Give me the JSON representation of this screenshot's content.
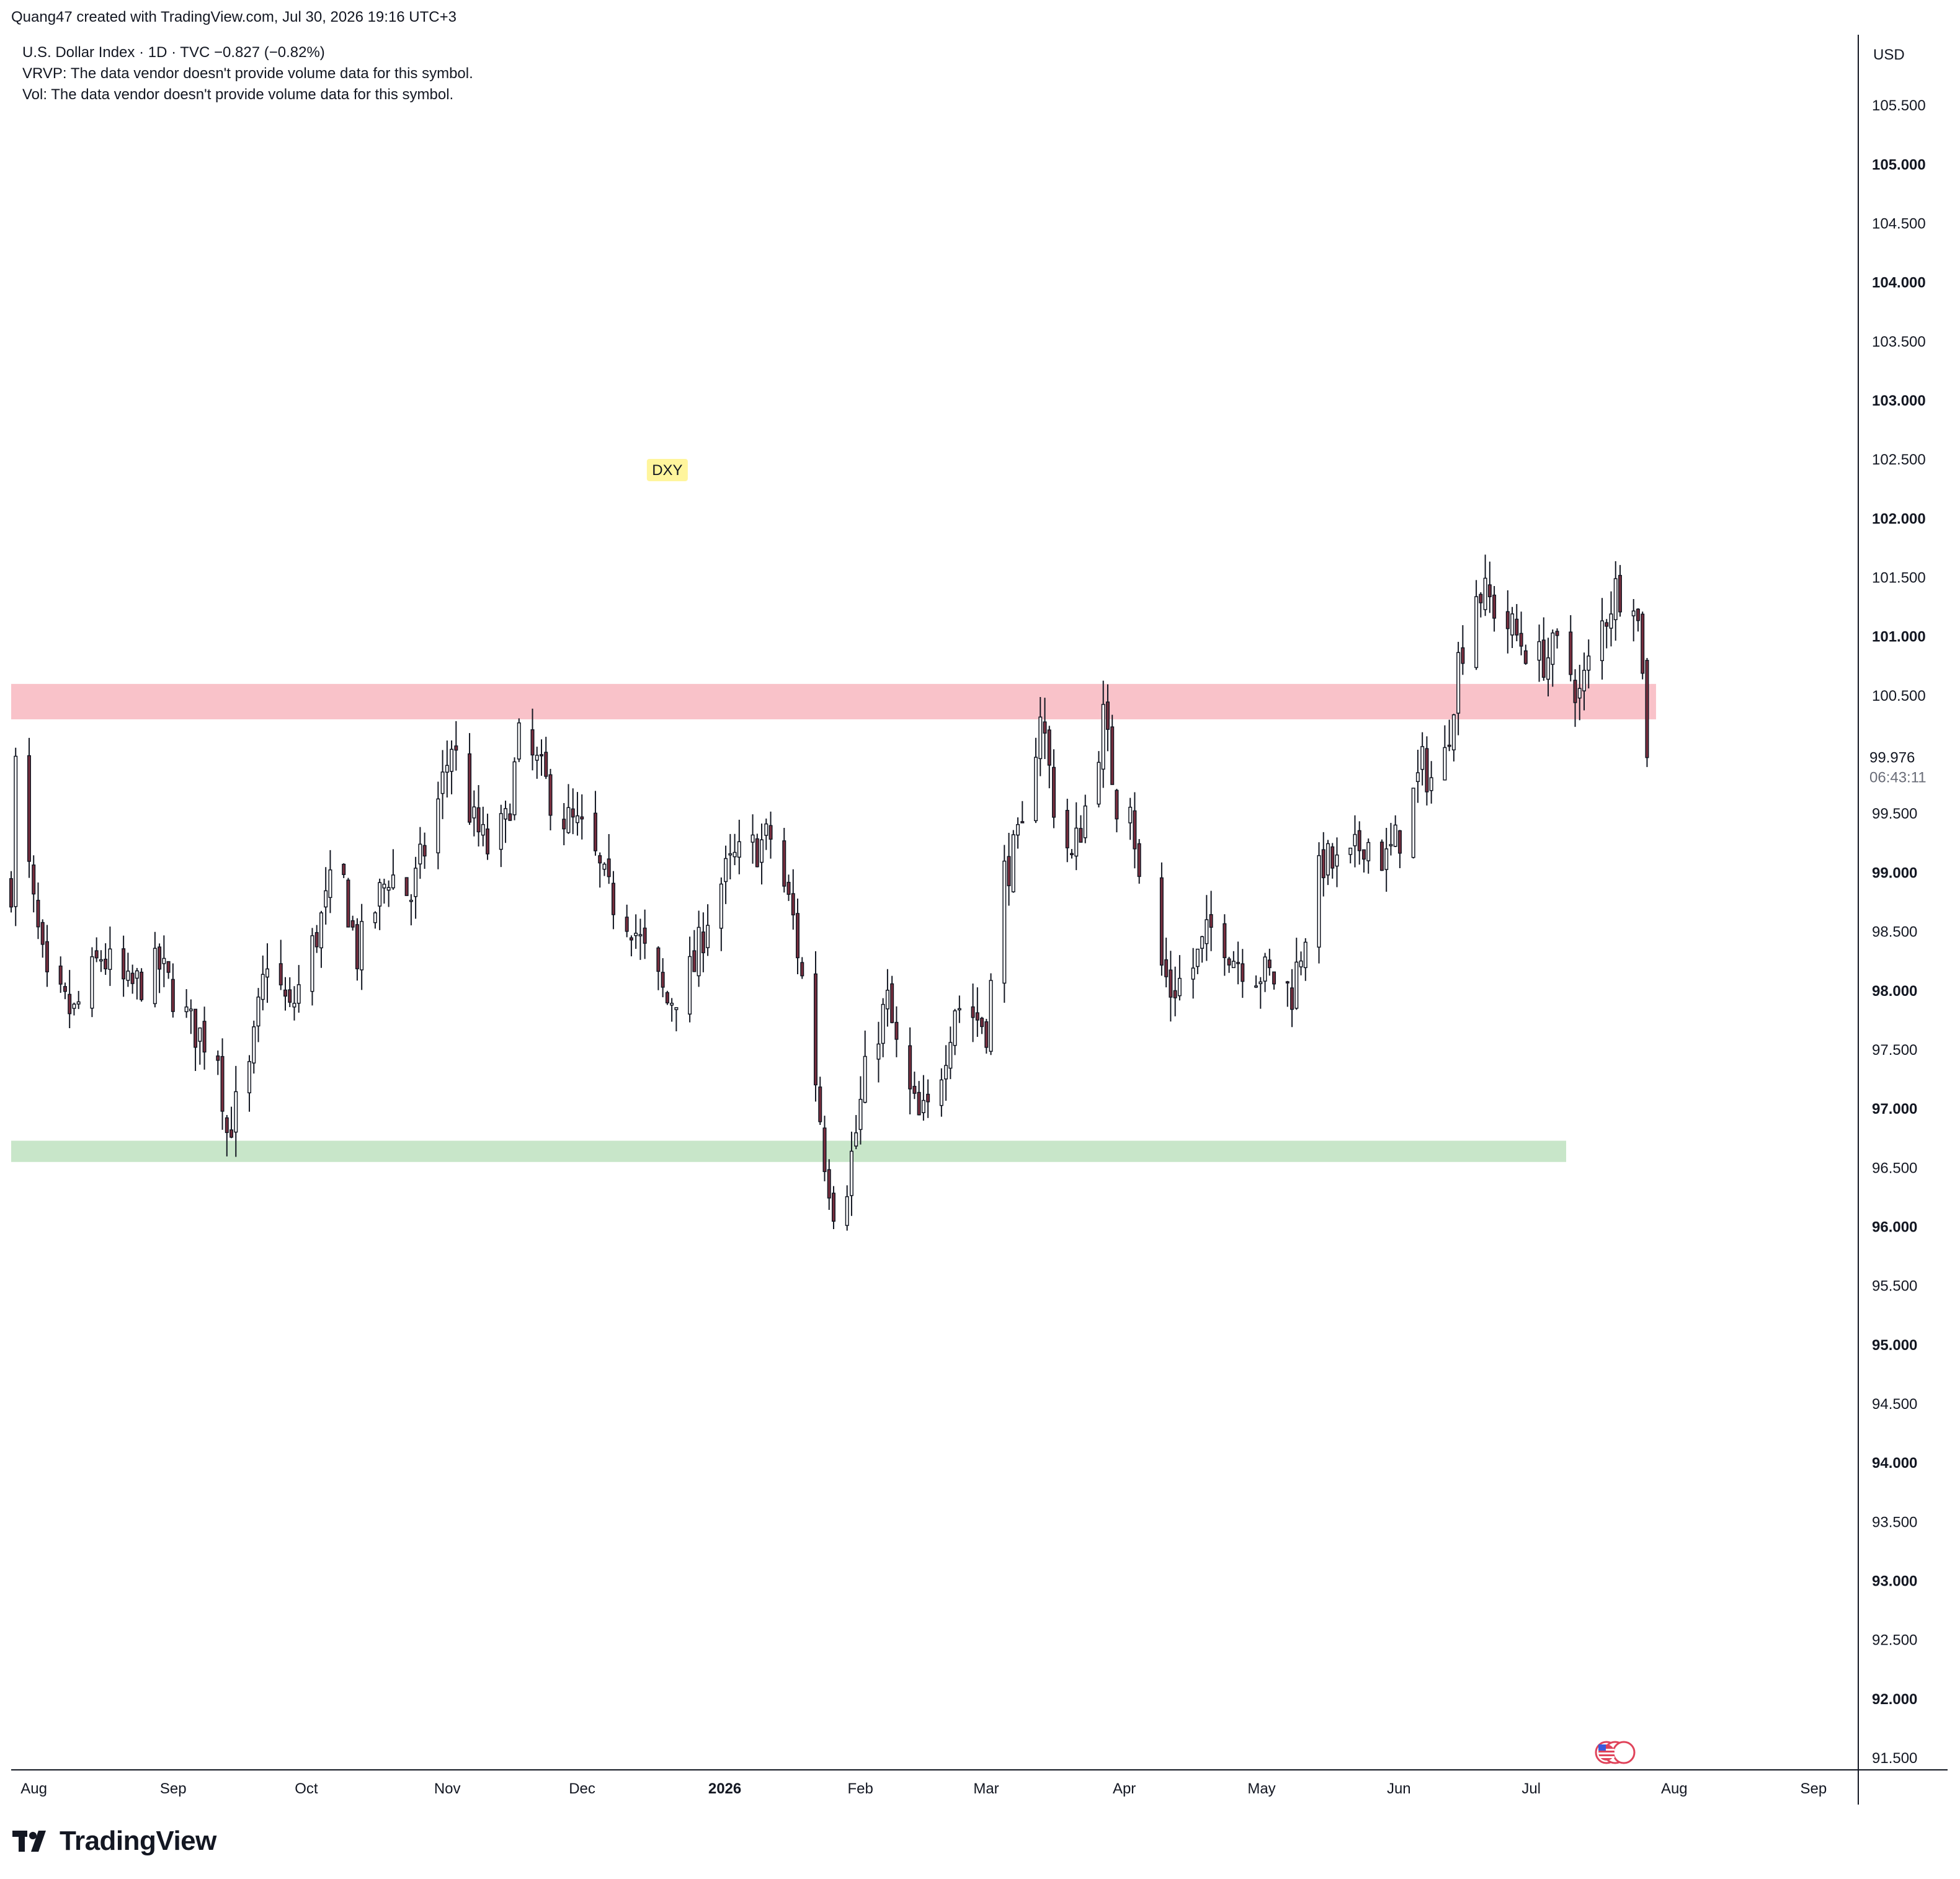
{
  "header": {
    "attribution": "Quang47 created with TradingView.com, Jul 30, 2026 19:16 UTC+3"
  },
  "legend": {
    "symbol_line": "U.S. Dollar Index · 1D · TVC  −0.827 (−0.82%)",
    "vrvp_note": "VRVP: The data vendor doesn't provide volume data for this symbol.",
    "vol_note": "Vol: The data vendor doesn't provide volume data for this symbol."
  },
  "footer": {
    "brand": "TradingView",
    "brand_icon": "tradingview-logo-icon"
  },
  "colors": {
    "resistance_zone": "#f9c2c9",
    "support_zone": "#c8e6c9",
    "candle_up_fill": "#ffffff",
    "candle_down_fill": "#7a2e3e",
    "candle_stroke": "#131722",
    "label_bg": "#fff59d"
  },
  "chart_data": {
    "type": "candlestick",
    "title": "U.S. Dollar Index · 1D · TVC",
    "currency": "USD",
    "ylim": [
      91.4,
      106.1
    ],
    "y_ticks": [
      "105.500",
      "105.000",
      "104.500",
      "104.000",
      "103.500",
      "103.000",
      "102.500",
      "102.000",
      "101.500",
      "101.000",
      "100.500",
      "99.500",
      "99.000",
      "98.500",
      "98.000",
      "97.500",
      "97.000",
      "96.500",
      "96.000",
      "95.500",
      "95.000",
      "94.500",
      "94.000",
      "93.500",
      "93.000",
      "92.500",
      "92.000",
      "91.500"
    ],
    "y_tick_values": [
      105.5,
      105.0,
      104.5,
      104.0,
      103.5,
      103.0,
      102.5,
      102.0,
      101.5,
      101.0,
      100.5,
      99.5,
      99.0,
      98.5,
      98.0,
      97.5,
      97.0,
      96.5,
      96.0,
      95.5,
      95.0,
      94.5,
      94.0,
      93.5,
      93.0,
      92.5,
      92.0,
      91.5
    ],
    "x_labels": [
      {
        "label": "Aug",
        "date": "2025-08-01"
      },
      {
        "label": "Sep",
        "date": "2025-09-01"
      },
      {
        "label": "Oct",
        "date": "2025-10-01"
      },
      {
        "label": "Nov",
        "date": "2025-11-01"
      },
      {
        "label": "Dec",
        "date": "2025-12-01"
      },
      {
        "label": "2026",
        "date": "2026-01-01",
        "bold": true
      },
      {
        "label": "Feb",
        "date": "2026-02-01"
      },
      {
        "label": "Mar",
        "date": "2026-03-01"
      },
      {
        "label": "Apr",
        "date": "2026-04-01"
      },
      {
        "label": "May",
        "date": "2026-05-01"
      },
      {
        "label": "Jun",
        "date": "2026-06-01"
      },
      {
        "label": "Jul",
        "date": "2026-07-01"
      },
      {
        "label": "Aug",
        "date": "2026-08-01"
      },
      {
        "label": "Sep",
        "date": "2026-09-01"
      }
    ],
    "xlim": [
      "2025-07-31",
      "2026-09-15"
    ],
    "last_price": "99.976",
    "last_price_value": 99.976,
    "countdown": "06:43:11",
    "symbol_label": "DXY",
    "symbol_label_anchor": {
      "date": "2025-12-24",
      "price": 102.37
    },
    "zones": [
      {
        "name": "resistance",
        "from": "2025-07-31",
        "to": "2026-08-01",
        "low": 100.3,
        "high": 100.6
      },
      {
        "name": "support",
        "from": "2025-07-31",
        "to": "2026-07-12",
        "low": 96.55,
        "high": 96.73
      }
    ],
    "anchors": [
      [
        "2025-07-31",
        98.9
      ],
      [
        "2025-08-01",
        99.9
      ],
      [
        "2025-08-05",
        98.7
      ],
      [
        "2025-08-08",
        98.0
      ],
      [
        "2025-08-14",
        97.8
      ],
      [
        "2025-08-20",
        98.3
      ],
      [
        "2025-08-26",
        98.0
      ],
      [
        "2025-09-02",
        98.2
      ],
      [
        "2025-09-09",
        97.7
      ],
      [
        "2025-09-15",
        97.5
      ],
      [
        "2025-09-17",
        96.8
      ],
      [
        "2025-09-22",
        97.3
      ],
      [
        "2025-09-26",
        98.3
      ],
      [
        "2025-10-01",
        97.8
      ],
      [
        "2025-10-08",
        98.6
      ],
      [
        "2025-10-12",
        99.1
      ],
      [
        "2025-10-16",
        98.3
      ],
      [
        "2025-10-23",
        99.0
      ],
      [
        "2025-10-28",
        98.8
      ],
      [
        "2025-11-03",
        99.6
      ],
      [
        "2025-11-06",
        100.1
      ],
      [
        "2025-11-11",
        99.4
      ],
      [
        "2025-11-14",
        99.2
      ],
      [
        "2025-11-18",
        99.4
      ],
      [
        "2025-11-21",
        100.1
      ],
      [
        "2025-11-25",
        99.9
      ],
      [
        "2025-11-30",
        99.5
      ],
      [
        "2025-12-06",
        99.3
      ],
      [
        "2025-12-11",
        98.8
      ],
      [
        "2025-12-16",
        98.6
      ],
      [
        "2025-12-20",
        98.2
      ],
      [
        "2025-12-24",
        97.9
      ],
      [
        "2025-12-30",
        98.2
      ],
      [
        "2026-01-03",
        98.8
      ],
      [
        "2026-01-08",
        99.1
      ],
      [
        "2026-01-12",
        99.2
      ],
      [
        "2026-01-16",
        99.3
      ],
      [
        "2026-01-21",
        98.6
      ],
      [
        "2026-01-25",
        97.6
      ],
      [
        "2026-01-28",
        96.6
      ],
      [
        "2026-01-31",
        96.0
      ],
      [
        "2026-02-04",
        96.8
      ],
      [
        "2026-02-07",
        97.5
      ],
      [
        "2026-02-11",
        97.9
      ],
      [
        "2026-02-14",
        97.3
      ],
      [
        "2026-02-18",
        96.9
      ],
      [
        "2026-02-21",
        97.0
      ],
      [
        "2026-02-26",
        97.9
      ],
      [
        "2026-03-02",
        97.8
      ],
      [
        "2026-03-05",
        97.7
      ],
      [
        "2026-03-09",
        99.0
      ],
      [
        "2026-03-13",
        99.3
      ],
      [
        "2026-03-17",
        100.4
      ],
      [
        "2026-03-20",
        99.6
      ],
      [
        "2026-03-24",
        99.1
      ],
      [
        "2026-03-28",
        99.7
      ],
      [
        "2026-03-31",
        100.3
      ],
      [
        "2026-04-03",
        99.6
      ],
      [
        "2026-04-06",
        99.7
      ],
      [
        "2026-04-08",
        98.9
      ],
      [
        "2026-04-12",
        98.3
      ],
      [
        "2026-04-15",
        98.0
      ],
      [
        "2026-04-20",
        98.2
      ],
      [
        "2026-04-25",
        98.6
      ],
      [
        "2026-04-29",
        98.3
      ],
      [
        "2026-05-03",
        98.2
      ],
      [
        "2026-05-08",
        98.1
      ],
      [
        "2026-05-12",
        98.0
      ],
      [
        "2026-05-16",
        98.7
      ],
      [
        "2026-05-19",
        99.1
      ],
      [
        "2026-05-24",
        99.0
      ],
      [
        "2026-05-28",
        99.3
      ],
      [
        "2026-06-02",
        99.1
      ],
      [
        "2026-06-06",
        99.4
      ],
      [
        "2026-06-10",
        99.9
      ],
      [
        "2026-06-14",
        99.7
      ],
      [
        "2026-06-18",
        100.8
      ],
      [
        "2026-06-22",
        101.4
      ],
      [
        "2026-06-25",
        101.3
      ],
      [
        "2026-07-01",
        101.0
      ],
      [
        "2026-07-06",
        100.8
      ],
      [
        "2026-07-11",
        100.9
      ],
      [
        "2026-07-15",
        100.5
      ],
      [
        "2026-07-19",
        101.0
      ],
      [
        "2026-07-23",
        101.4
      ],
      [
        "2026-07-27",
        101.4
      ],
      [
        "2026-07-29",
        100.8
      ],
      [
        "2026-07-30",
        99.976
      ]
    ],
    "gap": {
      "from": "2026-04-09",
      "to": "2026-04-10"
    }
  }
}
